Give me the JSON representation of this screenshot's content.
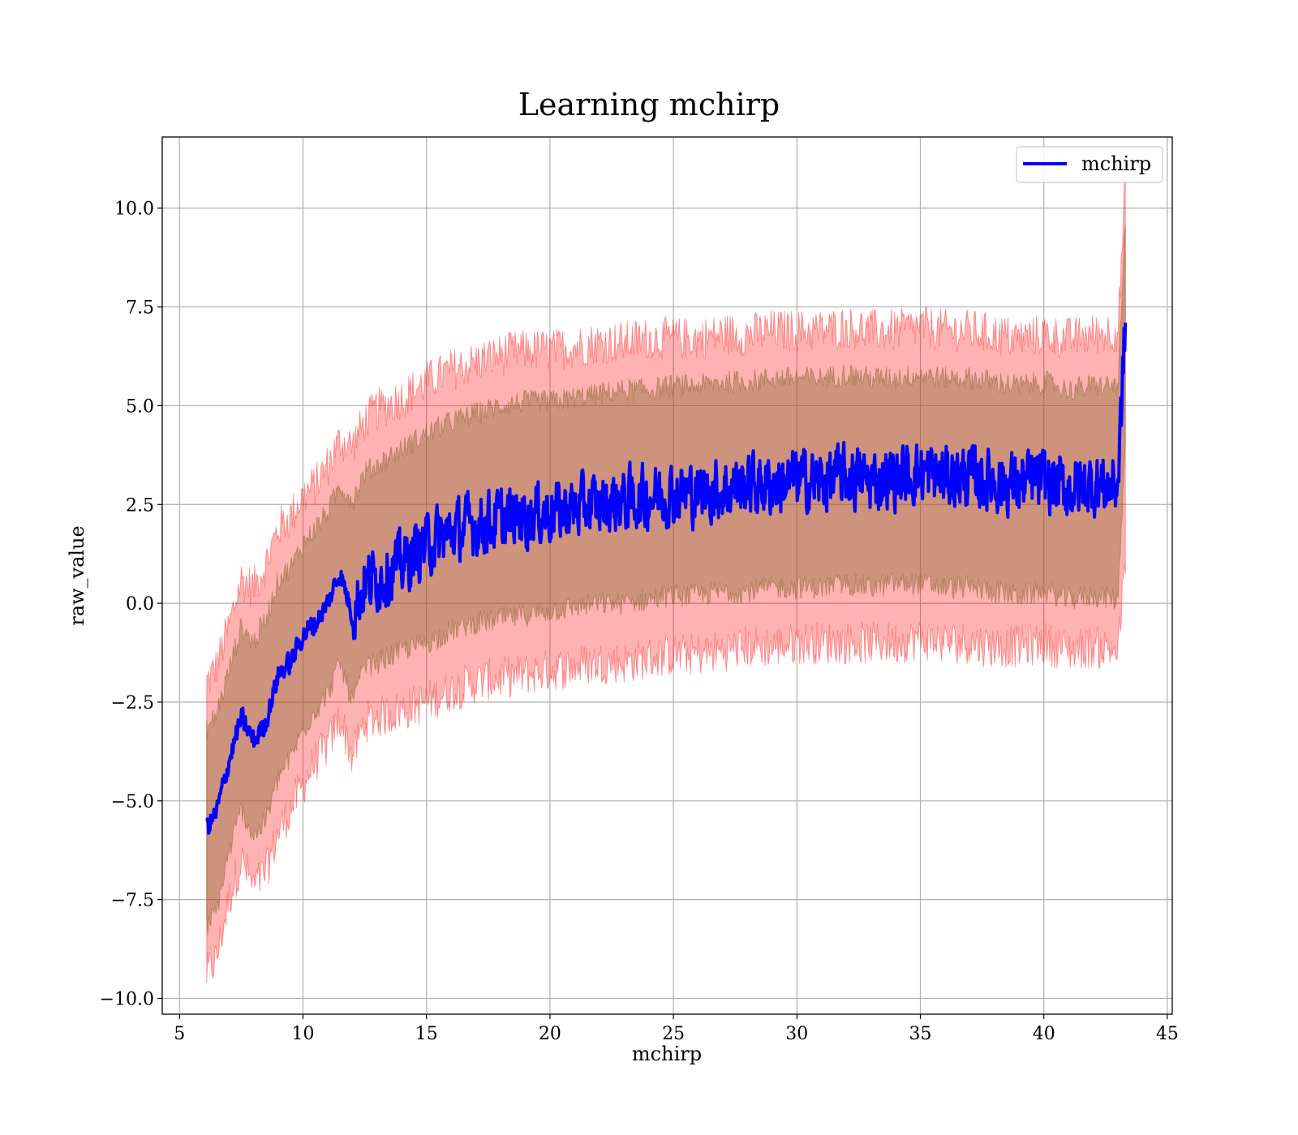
{
  "chart_data": {
    "type": "line",
    "title": "Learning mchirp",
    "xlabel": "mchirp",
    "ylabel": "raw_value",
    "xlim": [
      4.3,
      45.2
    ],
    "ylim": [
      -10.4,
      11.8
    ],
    "xticks": [
      5,
      10,
      15,
      20,
      25,
      30,
      35,
      40,
      45
    ],
    "xtick_labels": [
      "5",
      "10",
      "15",
      "20",
      "25",
      "30",
      "35",
      "40",
      "45"
    ],
    "yticks": [
      -10.0,
      -7.5,
      -5.0,
      -2.5,
      0.0,
      2.5,
      5.0,
      7.5,
      10.0
    ],
    "ytick_labels": [
      "−10.0",
      "−7.5",
      "−5.0",
      "−2.5",
      "0.0",
      "2.5",
      "5.0",
      "7.5",
      "10.0"
    ],
    "grid": true,
    "legend": {
      "position": "top-right",
      "entries": [
        "mchirp"
      ]
    },
    "series": [
      {
        "name": "mchirp",
        "color": "#0000ff",
        "x": [
          6.1,
          6.5,
          7.0,
          7.5,
          8.0,
          8.5,
          9.0,
          9.5,
          10.0,
          10.5,
          11.0,
          11.5,
          12.0,
          12.5,
          13.0,
          14.0,
          15.0,
          16.0,
          17.0,
          18.0,
          19.0,
          20.0,
          21.0,
          22.0,
          23.0,
          24.0,
          25.0,
          26.0,
          27.0,
          28.0,
          29.0,
          30.0,
          31.0,
          32.0,
          33.0,
          34.0,
          35.0,
          36.0,
          37.0,
          38.0,
          39.0,
          40.0,
          41.0,
          42.0,
          43.0,
          43.3
        ],
        "y": [
          -5.7,
          -5.3,
          -4.0,
          -2.9,
          -3.5,
          -3.0,
          -1.8,
          -1.5,
          -0.8,
          -0.5,
          0.0,
          0.8,
          -0.3,
          0.5,
          0.6,
          1.0,
          1.5,
          1.8,
          2.0,
          2.1,
          2.2,
          2.3,
          2.4,
          2.5,
          2.6,
          2.7,
          2.8,
          2.8,
          2.9,
          3.0,
          3.0,
          3.1,
          3.1,
          3.2,
          3.1,
          3.2,
          3.3,
          3.2,
          3.2,
          3.1,
          3.0,
          3.1,
          2.9,
          3.0,
          3.0,
          7.1
        ]
      }
    ],
    "bands": [
      {
        "name": "outer",
        "color": "#ff0000",
        "opacity": 0.3,
        "x": [
          6.1,
          6.5,
          7.0,
          7.5,
          8.0,
          8.5,
          9.0,
          9.5,
          10.0,
          10.5,
          11.0,
          11.5,
          12.0,
          12.5,
          13.0,
          14.0,
          15.0,
          16.0,
          17.0,
          18.0,
          19.0,
          20.0,
          21.0,
          22.0,
          23.0,
          24.0,
          25.0,
          26.0,
          27.0,
          28.0,
          29.0,
          30.0,
          31.0,
          32.0,
          33.0,
          34.0,
          35.0,
          36.0,
          37.0,
          38.0,
          39.0,
          40.0,
          41.0,
          42.0,
          43.0,
          43.3
        ],
        "upper": [
          -2.0,
          -1.6,
          -0.6,
          0.6,
          0.4,
          1.0,
          1.9,
          2.2,
          2.7,
          3.0,
          3.5,
          4.1,
          4.0,
          4.6,
          4.9,
          5.2,
          5.6,
          5.9,
          6.1,
          6.3,
          6.4,
          6.4,
          6.5,
          6.6,
          6.6,
          6.7,
          6.7,
          6.7,
          6.8,
          6.8,
          6.9,
          6.9,
          6.9,
          7.0,
          6.9,
          6.9,
          7.0,
          6.9,
          6.9,
          6.8,
          6.7,
          6.8,
          6.7,
          6.8,
          6.9,
          10.6
        ],
        "lower": [
          -9.4,
          -9.0,
          -7.5,
          -6.5,
          -7.2,
          -6.8,
          -5.8,
          -5.2,
          -4.6,
          -4.0,
          -3.6,
          -2.9,
          -3.9,
          -3.0,
          -2.9,
          -2.7,
          -2.5,
          -2.2,
          -2.0,
          -1.9,
          -1.8,
          -1.7,
          -1.6,
          -1.5,
          -1.5,
          -1.4,
          -1.3,
          -1.3,
          -1.2,
          -1.1,
          -1.1,
          -1.0,
          -1.0,
          -1.0,
          -1.0,
          -1.0,
          -0.9,
          -1.0,
          -1.0,
          -1.1,
          -1.1,
          -1.0,
          -1.2,
          -1.1,
          -1.2,
          1.0
        ]
      },
      {
        "name": "inner",
        "color": "#8b6a33",
        "opacity": 0.42,
        "x": [
          6.1,
          6.5,
          7.0,
          7.5,
          8.0,
          8.5,
          9.0,
          9.5,
          10.0,
          10.5,
          11.0,
          11.5,
          12.0,
          12.5,
          13.0,
          14.0,
          15.0,
          16.0,
          17.0,
          18.0,
          19.0,
          20.0,
          21.0,
          22.0,
          23.0,
          24.0,
          25.0,
          26.0,
          27.0,
          28.0,
          29.0,
          30.0,
          31.0,
          32.0,
          33.0,
          34.0,
          35.0,
          36.0,
          37.0,
          38.0,
          39.0,
          40.0,
          41.0,
          42.0,
          43.0,
          43.3
        ],
        "upper": [
          -3.2,
          -2.8,
          -1.7,
          -0.6,
          -1.0,
          -0.4,
          0.6,
          0.9,
          1.5,
          1.9,
          2.3,
          3.0,
          2.6,
          3.3,
          3.5,
          3.9,
          4.3,
          4.6,
          4.8,
          5.0,
          5.1,
          5.1,
          5.2,
          5.3,
          5.4,
          5.4,
          5.5,
          5.5,
          5.6,
          5.6,
          5.7,
          5.7,
          5.7,
          5.8,
          5.7,
          5.7,
          5.8,
          5.7,
          5.7,
          5.6,
          5.5,
          5.6,
          5.4,
          5.5,
          5.5,
          9.6
        ],
        "lower": [
          -8.2,
          -7.8,
          -6.3,
          -5.2,
          -5.9,
          -5.5,
          -4.4,
          -3.9,
          -3.2,
          -2.7,
          -2.3,
          -1.5,
          -2.5,
          -1.6,
          -1.5,
          -1.2,
          -1.0,
          -0.7,
          -0.5,
          -0.4,
          -0.3,
          -0.2,
          -0.1,
          0.0,
          0.0,
          0.1,
          0.2,
          0.2,
          0.3,
          0.3,
          0.4,
          0.4,
          0.4,
          0.5,
          0.4,
          0.5,
          0.5,
          0.4,
          0.4,
          0.3,
          0.2,
          0.3,
          0.1,
          0.2,
          0.1,
          4.2
        ]
      }
    ]
  }
}
